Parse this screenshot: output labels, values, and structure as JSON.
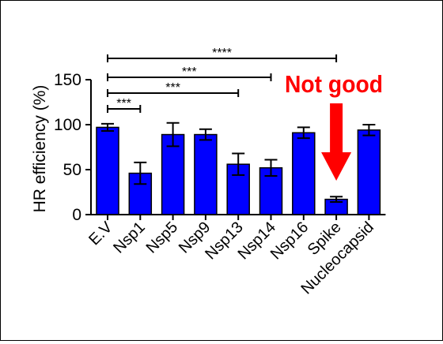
{
  "chart_data": {
    "type": "bar",
    "ylabel": "HR efficiency (%)",
    "ylim": [
      0,
      150
    ],
    "yticks": [
      0,
      50,
      100,
      150
    ],
    "categories": [
      "E.V",
      "Nsp1",
      "Nsp5",
      "Nsp9",
      "Nsp13",
      "Nsp14",
      "Nsp16",
      "Spike",
      "Nucleocapsid"
    ],
    "values": [
      97,
      46,
      89,
      89,
      56,
      52,
      91,
      17,
      94
    ],
    "errors": [
      4,
      12,
      13,
      6,
      12,
      9,
      6,
      3,
      6
    ],
    "bar_color": "#0000ff",
    "significance": [
      {
        "from": "E.V",
        "to": "Nsp1",
        "label": "***"
      },
      {
        "from": "E.V",
        "to": "Nsp13",
        "label": "***"
      },
      {
        "from": "E.V",
        "to": "Nsp14",
        "label": "***"
      },
      {
        "from": "E.V",
        "to": "Spike",
        "label": "****"
      }
    ],
    "annotation": {
      "text": "Not good",
      "target": "Spike",
      "color": "#ff0000"
    }
  }
}
